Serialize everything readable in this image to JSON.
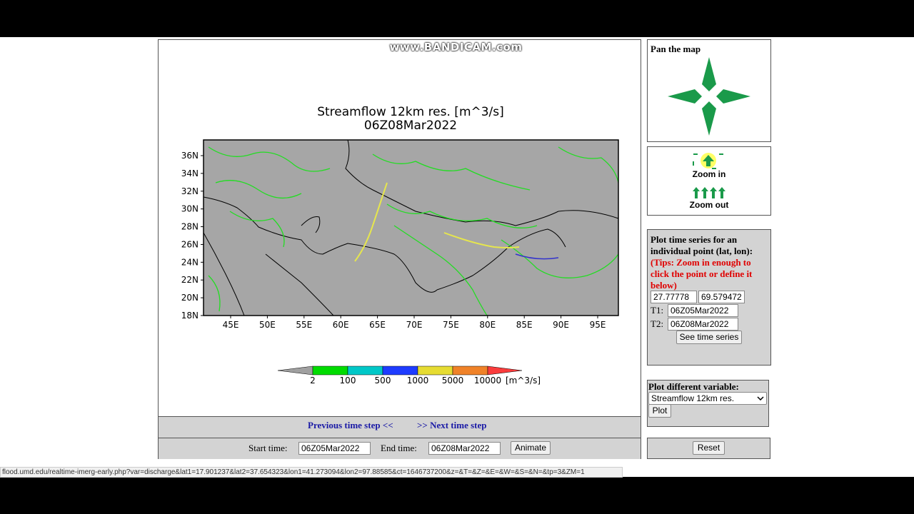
{
  "watermark": "www.BANDICAM.com",
  "map": {
    "title": "Streamflow 12km res. [m^3/s]",
    "time": "06Z08Mar2022",
    "lat_labels": [
      "36N",
      "34N",
      "32N",
      "30N",
      "28N",
      "26N",
      "24N",
      "22N",
      "20N",
      "18N"
    ],
    "lon_labels": [
      "45E",
      "50E",
      "55E",
      "60E",
      "65E",
      "70E",
      "75E",
      "80E",
      "85E",
      "90E",
      "95E"
    ],
    "colorbar": {
      "labels": [
        "2",
        "100",
        "500",
        "1000",
        "5000",
        "10000"
      ],
      "unit": "[m^3/s]"
    }
  },
  "navigation": {
    "previous": "Previous time step <<",
    "next": ">> Next time step"
  },
  "animation": {
    "start_label": "Start time:",
    "start_value": "06Z05Mar2022",
    "end_label": "End time:",
    "end_value": "06Z08Mar2022",
    "button": "Animate"
  },
  "pan": {
    "title": "Pan the map"
  },
  "zoom": {
    "zoom_in": "Zoom in",
    "zoom_out": "Zoom out"
  },
  "time_series": {
    "heading": "Plot time series for an individual point (lat, lon):",
    "tips": "(Tips: Zoom in enough to click the point or define it below)",
    "lat": "27.77778",
    "lon": "69.579472",
    "t1_label": "T1:",
    "t1_value": "06Z05Mar2022",
    "t2_label": "T2:",
    "t2_value": "06Z08Mar2022",
    "button": "See time series"
  },
  "variable": {
    "heading": "Plot different variable:",
    "selected": "Streamflow 12km res.",
    "button": "Plot"
  },
  "reset": "Reset",
  "status_url": "flood.umd.edu/realtime-imerg-early.php?var=discharge&lat1=17.901237&lat2=37.654323&lon1=41.273094&lon2=97.88585&ct=1646737200&z=&T=&Z=&E=&W=&S=&N=&tp=3&ZM=1"
}
